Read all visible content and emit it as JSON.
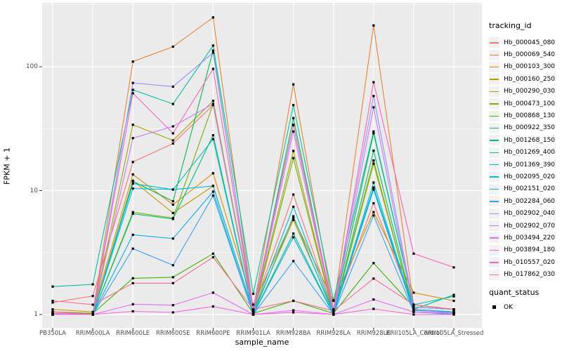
{
  "chart_data": {
    "type": "line",
    "title": "",
    "xlabel": "sample_name",
    "ylabel": "FPKM + 1",
    "y_scale": "log10",
    "ylim": [
      0.78,
      320
    ],
    "y_ticks": [
      1,
      10,
      100
    ],
    "y_tick_labels": [
      "1",
      "10",
      "100"
    ],
    "y_minor_ticks": [
      3.162,
      31.62,
      316.2
    ],
    "grid": true,
    "panel_bg": "#EBEBEB",
    "grid_color": "#FFFFFF",
    "marker": "black-square",
    "legend_position": "right",
    "legend_title": "tracking_id",
    "categories": [
      "PB350LA",
      "RRIM600LA",
      "RRIM600LE",
      "RRIM600SE",
      "RRIM600PE",
      "RRIM901LA",
      "RRIM928BA",
      "RRIM928LA",
      "RRIM928LE",
      "RRII105LA_Control",
      "RRII105LA_Stressed"
    ],
    "series": [
      {
        "name": "Hb_000045_080",
        "color": "#F8766D",
        "values": [
          1.25,
          1.41,
          17,
          24,
          49,
          1.1,
          9.3,
          1.07,
          7.9,
          1.15,
          1.1
        ]
      },
      {
        "name": "Hb_000069_540",
        "color": "#EA8331",
        "values": [
          1.05,
          1.02,
          110,
          145,
          250,
          1.1,
          72,
          1.1,
          215,
          1.2,
          1.1
        ]
      },
      {
        "name": "Hb_000103_300",
        "color": "#D89000",
        "values": [
          1.1,
          1.05,
          13.5,
          7.7,
          13.8,
          1.2,
          6.0,
          1.29,
          6.7,
          1.5,
          1.29
        ]
      },
      {
        "name": "Hb_000160_250",
        "color": "#C09B00",
        "values": [
          1.05,
          1.0,
          12.0,
          6.6,
          10.9,
          1.05,
          5.8,
          1.05,
          10.4,
          1.1,
          1.05
        ]
      },
      {
        "name": "Hb_000290_030",
        "color": "#A3A500",
        "values": [
          1.02,
          1.0,
          34,
          25.4,
          53,
          1.05,
          20.9,
          1.02,
          17.5,
          1.05,
          1.02
        ]
      },
      {
        "name": "Hb_000473_100",
        "color": "#7CAE00",
        "values": [
          1.02,
          1.0,
          6.7,
          6.0,
          50,
          1.02,
          18.3,
          1.02,
          16.5,
          1.08,
          1.05
        ]
      },
      {
        "name": "Hb_000868_130",
        "color": "#39B600",
        "values": [
          1.05,
          1.02,
          1.96,
          2.0,
          3.1,
          1.02,
          1.29,
          1.02,
          2.6,
          1.15,
          1.1
        ]
      },
      {
        "name": "Hb_000922_350",
        "color": "#00BB4E",
        "values": [
          1.0,
          1.0,
          11.9,
          8.2,
          135,
          1.05,
          38.5,
          1.05,
          29,
          1.2,
          1.1
        ]
      },
      {
        "name": "Hb_001268_150",
        "color": "#00BF7D",
        "values": [
          1.0,
          1.0,
          6.5,
          5.9,
          28,
          1.0,
          4.5,
          1.0,
          21,
          1.1,
          1.44
        ]
      },
      {
        "name": "Hb_001269_400",
        "color": "#00C1A3",
        "values": [
          1.68,
          1.75,
          65,
          50,
          148,
          1.47,
          49,
          1.3,
          30,
          1.2,
          1.4
        ]
      },
      {
        "name": "Hb_001369_390",
        "color": "#00BFC4",
        "values": [
          1.0,
          1.0,
          11.4,
          10.2,
          26,
          1.0,
          6.2,
          1.0,
          11.6,
          1.08,
          1.04
        ]
      },
      {
        "name": "Hb_002095_020",
        "color": "#00BAE0",
        "values": [
          1.0,
          1.0,
          10.4,
          10.2,
          10.9,
          1.05,
          7.4,
          1.05,
          10.6,
          1.1,
          1.05
        ]
      },
      {
        "name": "Hb_002151_020",
        "color": "#00B0F6",
        "values": [
          1.0,
          1.0,
          4.4,
          4.1,
          9.8,
          1.0,
          4.2,
          1.0,
          10.2,
          1.05,
          1.02
        ]
      },
      {
        "name": "Hb_002284_060",
        "color": "#35A2FF",
        "values": [
          1.0,
          1.0,
          3.4,
          2.5,
          9.1,
          1.0,
          2.7,
          1.0,
          6.3,
          1.05,
          1.0
        ]
      },
      {
        "name": "Hb_002902_040",
        "color": "#9590FF",
        "values": [
          1.02,
          1.0,
          74,
          69,
          130,
          1.1,
          33.7,
          1.1,
          58,
          1.15,
          1.1
        ]
      },
      {
        "name": "Hb_002902_070",
        "color": "#C77CFF",
        "values": [
          1.0,
          1.0,
          26.5,
          33,
          50,
          1.02,
          30,
          1.02,
          47,
          1.1,
          1.02
        ]
      },
      {
        "name": "Hb_003494_220",
        "color": "#E76BF3",
        "values": [
          1.0,
          1.0,
          1.21,
          1.19,
          1.5,
          1.0,
          1.08,
          1.0,
          1.32,
          1.05,
          1.02
        ]
      },
      {
        "name": "Hb_003894_180",
        "color": "#FA62DB",
        "values": [
          1.02,
          1.0,
          1.06,
          1.04,
          1.16,
          1.0,
          1.04,
          1.0,
          1.11,
          1.0,
          1.0
        ]
      },
      {
        "name": "Hb_010557_020",
        "color": "#FF62BC",
        "values": [
          1.05,
          1.0,
          61,
          29,
          96,
          1.05,
          34,
          1.05,
          75,
          3.1,
          2.4
        ]
      },
      {
        "name": "Hb_017862_030",
        "color": "#FF6A98",
        "values": [
          1.29,
          1.2,
          1.79,
          1.79,
          2.9,
          1.1,
          1.29,
          1.07,
          1.95,
          1.2,
          1.1
        ]
      }
    ],
    "quant_legend": {
      "title": "quant_status",
      "items": [
        {
          "label": "OK",
          "marker": "black-square"
        }
      ]
    }
  },
  "axes": {
    "x_title": "sample_name",
    "y_title": "FPKM + 1"
  },
  "colors": {
    "panel_background": "#EBEBEB",
    "gridline": "#FFFFFF",
    "tick_text": "#4d4d4d",
    "marker": "#000000"
  }
}
